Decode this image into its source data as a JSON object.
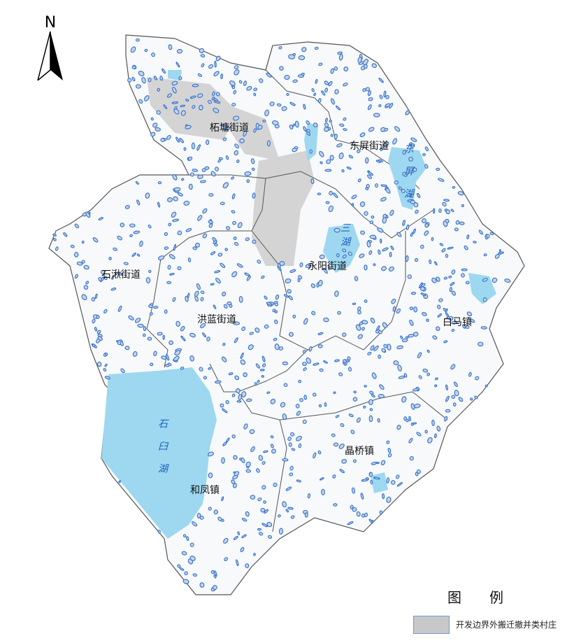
{
  "north_arrow": {
    "label": "N"
  },
  "districts": [
    {
      "name": "柘塘街道"
    },
    {
      "name": "东屏街道"
    },
    {
      "name": "永阳街道"
    },
    {
      "name": "石湫街道"
    },
    {
      "name": "洪蓝街道"
    },
    {
      "name": "白马镇"
    },
    {
      "name": "晶桥镇"
    },
    {
      "name": "和凤镇"
    }
  ],
  "lakes": [
    {
      "name": "石臼湖"
    },
    {
      "name": "东屏湖"
    },
    {
      "name": "三湖"
    }
  ],
  "legend": {
    "title": "图例",
    "items": [
      {
        "label": "开发边界外搬迁撤并类村庄",
        "fill": "#c8c8c8",
        "stroke": "#6a9be0"
      }
    ]
  },
  "colors": {
    "water": "#9dd8f0",
    "village_outline": "#2f6fd6",
    "urban": "#d4d4d4",
    "boundary": "#555555"
  }
}
